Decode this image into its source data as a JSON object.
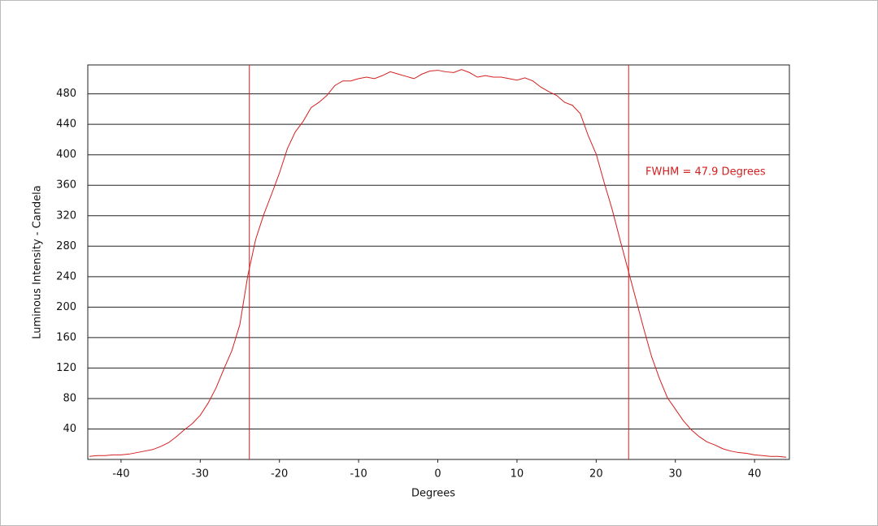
{
  "chart_data": {
    "type": "line",
    "xlabel": "Degrees",
    "ylabel": "Luminous Intensity - Candela",
    "annotation": "FWHM = 47.9 Degrees",
    "x": [
      -44,
      -43,
      -42,
      -41,
      -40,
      -39,
      -38,
      -37,
      -36,
      -35,
      -34,
      -33,
      -32,
      -31,
      -30,
      -29,
      -28,
      -27,
      -26,
      -25,
      -24,
      -23,
      -22,
      -21,
      -20,
      -19,
      -18,
      -17,
      -16,
      -15,
      -14,
      -13,
      -12,
      -11,
      -10,
      -9,
      -8,
      -7,
      -6,
      -5,
      -4,
      -3,
      -2,
      -1,
      0,
      1,
      2,
      3,
      4,
      5,
      6,
      7,
      8,
      9,
      10,
      11,
      12,
      13,
      14,
      15,
      16,
      17,
      18,
      19,
      20,
      21,
      22,
      23,
      24,
      25,
      26,
      27,
      28,
      29,
      30,
      31,
      32,
      33,
      34,
      35,
      36,
      37,
      38,
      39,
      40,
      41,
      42,
      43,
      44
    ],
    "values": [
      4,
      5,
      5,
      6,
      6,
      7,
      9,
      11,
      13,
      17,
      22,
      30,
      39,
      47,
      58,
      74,
      94,
      119,
      143,
      177,
      241,
      289,
      321,
      348,
      376,
      408,
      430,
      444,
      462,
      469,
      478,
      491,
      497,
      497,
      500,
      502,
      500,
      504,
      509,
      506,
      503,
      500,
      506,
      510,
      511,
      509,
      508,
      512,
      508,
      502,
      504,
      502,
      502,
      500,
      498,
      501,
      497,
      489,
      483,
      478,
      469,
      465,
      454,
      425,
      401,
      364,
      329,
      289,
      250,
      211,
      172,
      135,
      106,
      81,
      66,
      51,
      39,
      30,
      23,
      19,
      14,
      11,
      9,
      8,
      6,
      5,
      4,
      4,
      3
    ],
    "color": "#d42020",
    "vlines": [
      -23.8,
      24.1
    ],
    "xlim": [
      -44.2,
      44.4
    ],
    "ylim": [
      0,
      518
    ],
    "xticks": [
      -40,
      -30,
      -20,
      -10,
      0,
      10,
      20,
      30,
      40
    ],
    "yticks": [
      40,
      80,
      120,
      160,
      200,
      240,
      280,
      320,
      360,
      400,
      440,
      480
    ],
    "grid": true
  }
}
